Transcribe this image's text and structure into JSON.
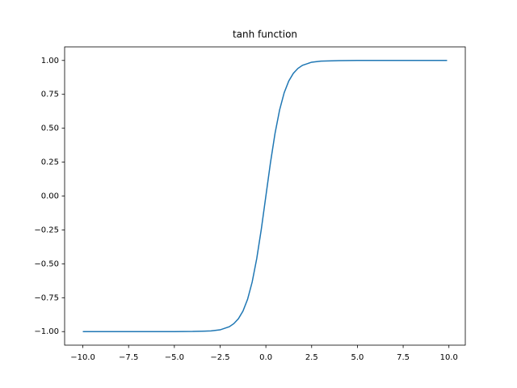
{
  "chart_data": {
    "type": "line",
    "title": "tanh function",
    "x": [
      -10,
      -9,
      -8,
      -7,
      -6,
      -5,
      -4,
      -3,
      -2.5,
      -2,
      -1.75,
      -1.5,
      -1.25,
      -1,
      -0.75,
      -0.5,
      -0.25,
      0,
      0.25,
      0.5,
      0.75,
      1,
      1.25,
      1.5,
      1.75,
      2,
      2.5,
      3,
      4,
      5,
      6,
      7,
      8,
      9,
      9.9
    ],
    "series": [
      {
        "color": "#1f77b4",
        "values": [
          -1.0,
          -1.0,
          -1.0,
          -1.0,
          -1.0,
          -1.0,
          -0.999,
          -0.995,
          -0.987,
          -0.964,
          -0.941,
          -0.905,
          -0.848,
          -0.762,
          -0.635,
          -0.462,
          -0.245,
          0,
          0.245,
          0.462,
          0.635,
          0.762,
          0.848,
          0.905,
          0.941,
          0.964,
          0.987,
          0.995,
          0.999,
          1.0,
          1.0,
          1.0,
          1.0,
          1.0,
          1.0
        ]
      }
    ],
    "xlim": [
      -10.995,
      10.895
    ],
    "ylim": [
      -1.1,
      1.1
    ],
    "xticks": [
      {
        "value": -10,
        "label": "−10.0"
      },
      {
        "value": -7.5,
        "label": "−7.5"
      },
      {
        "value": -5,
        "label": "−5.0"
      },
      {
        "value": -2.5,
        "label": "−2.5"
      },
      {
        "value": 0,
        "label": "0.0"
      },
      {
        "value": 2.5,
        "label": "2.5"
      },
      {
        "value": 5,
        "label": "5.0"
      },
      {
        "value": 7.5,
        "label": "7.5"
      },
      {
        "value": 10,
        "label": "10.0"
      }
    ],
    "yticks": [
      {
        "value": -1,
        "label": "−1.00"
      },
      {
        "value": -0.75,
        "label": "−0.75"
      },
      {
        "value": -0.5,
        "label": "−0.50"
      },
      {
        "value": -0.25,
        "label": "−0.25"
      },
      {
        "value": 0,
        "label": "0.00"
      },
      {
        "value": 0.25,
        "label": "0.25"
      },
      {
        "value": 0.5,
        "label": "0.50"
      },
      {
        "value": 0.75,
        "label": "0.75"
      },
      {
        "value": 1,
        "label": "1.00"
      }
    ],
    "grid": false
  }
}
